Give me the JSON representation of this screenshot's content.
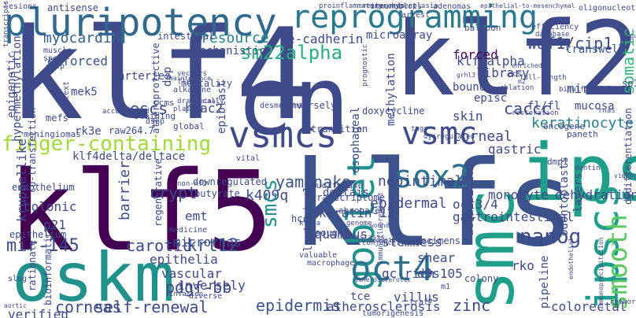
{
  "words": [
    {
      "text": "klf4",
      "color": "#3e4a89"
    },
    {
      "text": "cn",
      "color": "#3e4a89"
    },
    {
      "text": "klf2",
      "color": "#3e4a89"
    },
    {
      "text": "klf5",
      "color": "#440154"
    },
    {
      "text": "klfs",
      "color": "#3b528b"
    },
    {
      "text": "ips",
      "color": "#1f9e89"
    },
    {
      "text": "oskm",
      "color": "#21918c"
    },
    {
      "text": "pluripotency",
      "color": "#31688e"
    },
    {
      "text": "reprogramming",
      "color": "#2a788e"
    },
    {
      "text": "vsmcs",
      "color": "#3e4a89"
    },
    {
      "text": "vsmc",
      "color": "#3e4a89"
    },
    {
      "text": "smc",
      "color": "#1f9e89"
    },
    {
      "text": "ipscs",
      "color": "#1f9e89"
    },
    {
      "text": "goblet",
      "color": "#21918c"
    },
    {
      "text": "oct4",
      "color": "#2c728e"
    },
    {
      "text": "sox2",
      "color": "#2c728e"
    },
    {
      "text": "smooth",
      "color": "#5ec962"
    },
    {
      "text": "nanog",
      "color": "#3e4a89"
    },
    {
      "text": "finger-containing",
      "color": "#a0da39"
    },
    {
      "text": "sm22alpha",
      "color": "#28ae80"
    },
    {
      "text": "yamanaka",
      "color": "#3b528b"
    },
    {
      "text": "myocardin",
      "color": "#355f8d"
    },
    {
      "text": "resource",
      "color": "#26828e"
    },
    {
      "text": "waf1/cip1",
      "color": "#3e4a89"
    },
    {
      "text": "somatic",
      "color": "#35b779"
    },
    {
      "text": "enforced",
      "color": "#3b528b"
    },
    {
      "text": "forced",
      "color": "#440154"
    },
    {
      "text": "transwell",
      "color": "#38598c"
    },
    {
      "text": "keratinocyte",
      "color": "#287c8e"
    },
    {
      "text": "krt12",
      "color": "#38598c"
    },
    {
      "text": "pdgf-bb",
      "color": "#3e4a89"
    },
    {
      "text": "self-renewal",
      "color": "#3e4a89"
    },
    {
      "text": "mir-145",
      "color": "#3e4a89"
    },
    {
      "text": "corneas",
      "color": "#3e4a89"
    },
    {
      "text": "epidermis",
      "color": "#3b528b"
    },
    {
      "text": "zinc",
      "color": "#3e4a89"
    },
    {
      "text": "crypt",
      "color": "#3e4a89"
    },
    {
      "text": "barrier",
      "color": "#3e4a89"
    },
    {
      "text": "carotid",
      "color": "#3e4a89"
    },
    {
      "text": "epithelia",
      "color": "#3e4a89"
    },
    {
      "text": "vascular",
      "color": "#3e4a89"
    },
    {
      "text": "inversely",
      "color": "#3e4a89"
    },
    {
      "text": "kruppellike",
      "color": "#3e4a89"
    },
    {
      "text": "colonic",
      "color": "#3e4a89"
    },
    {
      "text": "escs",
      "color": "#3e4a89"
    },
    {
      "text": "hdac2",
      "color": "#3e4a89"
    },
    {
      "text": "caccc",
      "color": "#3e4a89"
    },
    {
      "text": "corneal",
      "color": "#3e4a89"
    },
    {
      "text": "gastric",
      "color": "#3e4a89"
    },
    {
      "text": "skin",
      "color": "#3e4a89"
    },
    {
      "text": "k409q",
      "color": "#3e4a89"
    },
    {
      "text": "epidermal",
      "color": "#3e4a89"
    },
    {
      "text": "dehydration",
      "color": "#3e4a89"
    },
    {
      "text": "neointimal",
      "color": "#3e4a89"
    },
    {
      "text": "micrornas",
      "color": "#3e4a89"
    },
    {
      "text": "mirnas",
      "color": "#3e4a89"
    },
    {
      "text": "library",
      "color": "#3e4a89"
    },
    {
      "text": "klf4alpha",
      "color": "#3e4a89"
    },
    {
      "text": "smcs",
      "color": "#21918c"
    },
    {
      "text": "stemness",
      "color": "#3e4a89"
    },
    {
      "text": "shear",
      "color": "#3e4a89"
    },
    {
      "text": "d9s105",
      "color": "#3e4a89"
    },
    {
      "text": "gc-rich",
      "color": "#3e4a89"
    },
    {
      "text": "villus",
      "color": "#3e4a89"
    },
    {
      "text": "keratin-12",
      "color": "#3e4a89"
    },
    {
      "text": "oct3/4",
      "color": "#3e4a89"
    },
    {
      "text": "gastrointestinal",
      "color": "#3e4a89"
    },
    {
      "text": "squamous",
      "color": "#3e4a89"
    },
    {
      "text": "monocyte",
      "color": "#3e4a89"
    },
    {
      "text": "colorectal",
      "color": "#3e4a89"
    },
    {
      "text": "rko",
      "color": "#3e4a89"
    },
    {
      "text": "atherosclerosis",
      "color": "#3e4a89"
    },
    {
      "text": "tce",
      "color": "#3e4a89"
    },
    {
      "text": "verified",
      "color": "#3e4a89"
    },
    {
      "text": "p21",
      "color": "#3e4a89"
    },
    {
      "text": "emt",
      "color": "#3e4a89"
    },
    {
      "text": "e-cadherin",
      "color": "#3e4a89"
    },
    {
      "text": "microarray",
      "color": "#3e4a89"
    },
    {
      "text": "intestinal",
      "color": "#3e4a89"
    },
    {
      "text": "mechanistic",
      "color": "#3e4a89"
    },
    {
      "text": "bound",
      "color": "#3e4a89"
    },
    {
      "text": "episc",
      "color": "#3e4a89"
    },
    {
      "text": "fl/fl",
      "color": "#3e4a89"
    },
    {
      "text": "acquisition",
      "color": "#3e4a89"
    },
    {
      "text": "odontoblasts",
      "color": "#3e4a89"
    },
    {
      "text": "pipeline",
      "color": "#3e4a89"
    },
    {
      "text": "lentiviral",
      "color": "#3e4a89"
    },
    {
      "text": "klf4delta/deltace",
      "color": "#3e4a89"
    },
    {
      "text": "mek5",
      "color": "#3e4a89"
    },
    {
      "text": "epigenetic",
      "color": "#3e4a89"
    },
    {
      "text": "hypermethylation",
      "color": "#3e4a89"
    },
    {
      "text": "rk3e",
      "color": "#3e4a89"
    },
    {
      "text": "raw264.7",
      "color": "#3e4a89"
    },
    {
      "text": "dsp",
      "color": "#3e4a89"
    },
    {
      "text": "arteries",
      "color": "#3e4a89"
    },
    {
      "text": "epiblast",
      "color": "#3e4a89"
    },
    {
      "text": "esophageal",
      "color": "#3e4a89"
    },
    {
      "text": "methylation",
      "color": "#3e4a89"
    },
    {
      "text": "deltais",
      "color": "#3e4a89"
    },
    {
      "text": "c-myc",
      "color": "#3e4a89"
    },
    {
      "text": "conversely",
      "color": "#3e4a89"
    },
    {
      "text": "transition",
      "color": "#3e4a89"
    },
    {
      "text": "doxycycline",
      "color": "#3e4a89"
    },
    {
      "text": "layers",
      "color": "#3e4a89"
    },
    {
      "text": "mucosa",
      "color": "#3e4a89"
    },
    {
      "text": "dedifferentiation",
      "color": "#3e4a89"
    },
    {
      "text": "sp1",
      "color": "#3e4a89"
    },
    {
      "text": "endothelium",
      "color": "#3e4a89"
    },
    {
      "text": "epithelium",
      "color": "#3e4a89"
    },
    {
      "text": "regenerative",
      "color": "#3e4a89"
    },
    {
      "text": "butyrate",
      "color": "#3e4a89"
    },
    {
      "text": "hcc",
      "color": "#3e4a89"
    },
    {
      "text": "transcriptome",
      "color": "#3e4a89"
    },
    {
      "text": "downregulated",
      "color": "#3e4a89"
    },
    {
      "text": "meningiomas",
      "color": "#3e4a89"
    },
    {
      "text": "mortality",
      "color": "#3e4a89"
    },
    {
      "text": "staining",
      "color": "#3e4a89"
    },
    {
      "text": "oncogene",
      "color": "#3e4a89"
    },
    {
      "text": "paneth",
      "color": "#3e4a89"
    },
    {
      "text": "specimens",
      "color": "#3e4a89"
    },
    {
      "text": "luciferase",
      "color": "#3e4a89"
    },
    {
      "text": "dmp1",
      "color": "#3e4a89"
    },
    {
      "text": "abrogated",
      "color": "#3e4a89"
    },
    {
      "text": "sought",
      "color": "#3e4a89"
    },
    {
      "text": "valuable",
      "color": "#3e4a89"
    },
    {
      "text": "colony",
      "color": "#3e4a89"
    },
    {
      "text": "macrophage",
      "color": "#3e4a89"
    },
    {
      "text": "bioinformatics",
      "color": "#3e4a89"
    },
    {
      "text": "rationale",
      "color": "#3e4a89"
    },
    {
      "text": "slug",
      "color": "#3e4a89"
    },
    {
      "text": "diverse",
      "color": "#3e4a89"
    },
    {
      "text": "tumorigenesis",
      "color": "#3e4a89"
    },
    {
      "text": "traf7",
      "color": "#3e4a89"
    },
    {
      "text": "m1",
      "color": "#3e4a89"
    },
    {
      "text": "lesions",
      "color": "#3e4a89"
    },
    {
      "text": "antisense",
      "color": "#3e4a89"
    },
    {
      "text": "restenosis",
      "color": "#3e4a89"
    },
    {
      "text": "hyperplasia",
      "color": "#3e4a89"
    },
    {
      "text": "adenomas",
      "color": "#3e4a89"
    },
    {
      "text": "proinflammatory",
      "color": "#3e4a89"
    },
    {
      "text": "immunoblots",
      "color": "#3e4a89"
    },
    {
      "text": "arrest",
      "color": "#3e4a89"
    },
    {
      "text": "epithelial-to-mesenchymal",
      "color": "#3e4a89"
    },
    {
      "text": "oligonucleotide",
      "color": "#3e4a89"
    },
    {
      "text": "balloon",
      "color": "#3e4a89"
    },
    {
      "text": "efficiency",
      "color": "#3e4a89"
    },
    {
      "text": "database",
      "color": "#3e4a89"
    },
    {
      "text": "tongue",
      "color": "#3e4a89"
    },
    {
      "text": "muscle",
      "color": "#3e4a89"
    },
    {
      "text": "flow",
      "color": "#3e4a89"
    },
    {
      "text": "alkaline",
      "color": "#3e4a89"
    },
    {
      "text": "vectors",
      "color": "#3e4a89"
    },
    {
      "text": "maintenance",
      "color": "#3e4a89"
    },
    {
      "text": "desmosomal",
      "color": "#3e4a89"
    },
    {
      "text": "grhl3",
      "color": "#3e4a89"
    },
    {
      "text": "enriched",
      "color": "#3e4a89"
    },
    {
      "text": "full-length",
      "color": "#3e4a89"
    },
    {
      "text": "ablation",
      "color": "#3e4a89"
    },
    {
      "text": "bisulfite",
      "color": "#3e4a89"
    },
    {
      "text": "ecs",
      "color": "#3e4a89"
    },
    {
      "text": "m2",
      "color": "#3e4a89"
    },
    {
      "text": "ccms",
      "color": "#3e4a89"
    },
    {
      "text": "plasmid",
      "color": "#3e4a89"
    },
    {
      "text": "drastically",
      "color": "#3e4a89"
    },
    {
      "text": "terminal",
      "color": "#3e4a89"
    },
    {
      "text": "tags",
      "color": "#3e4a89"
    },
    {
      "text": "dysregulated",
      "color": "#3e4a89"
    },
    {
      "text": "prognostic",
      "color": "#3e4a89"
    },
    {
      "text": "rnas",
      "color": "#3e4a89"
    },
    {
      "text": "restoration",
      "color": "#3e4a89"
    },
    {
      "text": "dentin",
      "color": "#3e4a89"
    },
    {
      "text": "vimentin",
      "color": "#3e4a89"
    },
    {
      "text": "vital",
      "color": "#3e4a89"
    },
    {
      "text": "global",
      "color": "#3e4a89"
    },
    {
      "text": "accompanied",
      "color": "#3e4a89"
    },
    {
      "text": "co-transfection",
      "color": "#3e4a89"
    },
    {
      "text": "non-nf2",
      "color": "#3e4a89"
    },
    {
      "text": "medicine",
      "color": "#3e4a89"
    },
    {
      "text": "klf2a",
      "color": "#3e4a89"
    },
    {
      "text": "genome",
      "color": "#3e4a89"
    },
    {
      "text": "metastasis",
      "color": "#3e4a89"
    },
    {
      "text": "wound",
      "color": "#3e4a89"
    },
    {
      "text": "conjunctive",
      "color": "#3e4a89"
    },
    {
      "text": "permeability",
      "color": "#3e4a89"
    },
    {
      "text": "immunofluorescent",
      "color": "#3e4a89"
    },
    {
      "text": "atherosclerotic",
      "color": "#3e4a89"
    },
    {
      "text": "aortic",
      "color": "#3e4a89"
    },
    {
      "text": "invasion",
      "color": "#3e4a89"
    },
    {
      "text": "endothelial",
      "color": "#3e4a89"
    },
    {
      "text": "immunoprecipitation",
      "color": "#3e4a89"
    },
    {
      "text": "networks",
      "color": "#3e4a89"
    },
    {
      "text": "transcripts",
      "color": "#3e4a89"
    },
    {
      "text": "mefs",
      "color": "#3e4a89"
    },
    {
      "text": "chip",
      "color": "#3e4a89"
    },
    {
      "text": "context",
      "color": "#3e4a89"
    },
    {
      "text": "spe",
      "color": "#3e4a89"
    },
    {
      "text": "atheroprotective",
      "color": "#3e4a89"
    },
    {
      "text": "dspp",
      "color": "#3e4a89"
    }
  ]
}
